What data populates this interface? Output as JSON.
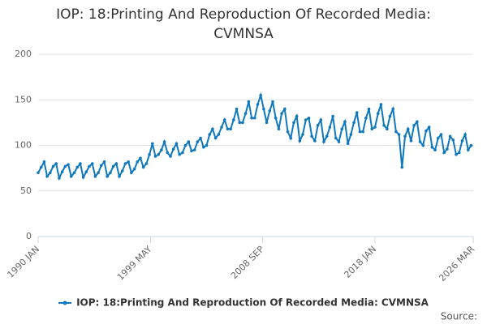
{
  "chart_data": {
    "type": "line",
    "title": "IOP: 18:Printing And Reproduction Of Recorded Media: CVMNSA",
    "source": "Source:",
    "x": [
      "1990-01",
      "1990-04",
      "1990-07",
      "1990-10",
      "1991-01",
      "1991-04",
      "1991-07",
      "1991-10",
      "1992-01",
      "1992-04",
      "1992-07",
      "1992-10",
      "1993-01",
      "1993-04",
      "1993-07",
      "1993-10",
      "1994-01",
      "1994-04",
      "1994-07",
      "1994-10",
      "1995-01",
      "1995-04",
      "1995-07",
      "1995-10",
      "1996-01",
      "1996-04",
      "1996-07",
      "1996-10",
      "1997-01",
      "1997-04",
      "1997-07",
      "1997-10",
      "1998-01",
      "1998-04",
      "1998-07",
      "1998-10",
      "1999-01",
      "1999-04",
      "1999-07",
      "1999-10",
      "2000-01",
      "2000-04",
      "2000-07",
      "2000-10",
      "2001-01",
      "2001-04",
      "2001-07",
      "2001-10",
      "2002-01",
      "2002-04",
      "2002-07",
      "2002-10",
      "2003-01",
      "2003-04",
      "2003-07",
      "2003-10",
      "2004-01",
      "2004-04",
      "2004-07",
      "2004-10",
      "2005-01",
      "2005-04",
      "2005-07",
      "2005-10",
      "2006-01",
      "2006-04",
      "2006-07",
      "2006-10",
      "2007-01",
      "2007-04",
      "2007-07",
      "2007-10",
      "2008-01",
      "2008-04",
      "2008-07",
      "2008-10",
      "2009-01",
      "2009-04",
      "2009-07",
      "2009-10",
      "2010-01",
      "2010-04",
      "2010-07",
      "2010-10",
      "2011-01",
      "2011-04",
      "2011-07",
      "2011-10",
      "2012-01",
      "2012-04",
      "2012-07",
      "2012-10",
      "2013-01",
      "2013-04",
      "2013-07",
      "2013-10",
      "2014-01",
      "2014-04",
      "2014-07",
      "2014-10",
      "2015-01",
      "2015-04",
      "2015-07",
      "2015-10",
      "2016-01",
      "2016-04",
      "2016-07",
      "2016-10",
      "2017-01",
      "2017-04",
      "2017-07",
      "2017-10",
      "2018-01",
      "2018-04",
      "2018-07",
      "2018-10",
      "2019-01",
      "2019-04",
      "2019-07",
      "2019-10",
      "2020-01",
      "2020-04",
      "2020-07",
      "2020-10",
      "2021-01",
      "2021-04",
      "2021-07",
      "2021-10",
      "2022-01",
      "2022-04",
      "2022-07",
      "2022-10",
      "2023-01",
      "2023-04",
      "2023-07",
      "2023-10",
      "2024-01",
      "2024-04",
      "2024-07",
      "2024-10",
      "2025-01",
      "2025-04",
      "2025-07",
      "2025-10",
      "2026-01"
    ],
    "series": [
      {
        "name": "IOP: 18:Printing And Reproduction Of Recorded Media: CVMNSA",
        "color": "#0f78be",
        "values": [
          70,
          76,
          82,
          66,
          70,
          77,
          80,
          64,
          71,
          77,
          79,
          66,
          70,
          76,
          80,
          65,
          71,
          77,
          80,
          66,
          70,
          78,
          82,
          66,
          70,
          77,
          80,
          66,
          72,
          80,
          82,
          70,
          74,
          82,
          86,
          76,
          80,
          90,
          102,
          88,
          90,
          95,
          104,
          92,
          88,
          96,
          102,
          90,
          92,
          100,
          104,
          94,
          95,
          104,
          108,
          98,
          100,
          112,
          118,
          108,
          112,
          120,
          128,
          118,
          118,
          128,
          140,
          125,
          125,
          135,
          148,
          130,
          130,
          145,
          155,
          140,
          125,
          138,
          148,
          130,
          118,
          135,
          140,
          115,
          108,
          125,
          132,
          105,
          112,
          128,
          130,
          110,
          105,
          122,
          128,
          104,
          110,
          120,
          132,
          108,
          104,
          118,
          126,
          102,
          112,
          125,
          136,
          115,
          115,
          130,
          140,
          118,
          120,
          135,
          145,
          122,
          118,
          132,
          140,
          115,
          112,
          76,
          110,
          118,
          105,
          122,
          126,
          104,
          100,
          116,
          120,
          98,
          95,
          108,
          112,
          92,
          96,
          110,
          106,
          90,
          92,
          105,
          112,
          95,
          100
        ]
      }
    ],
    "xlim": [
      "1990-01",
      "2026-03"
    ],
    "xticks": [
      {
        "value": "1990-01",
        "label": "1990 JAN"
      },
      {
        "value": "1999-05",
        "label": "1999 MAY"
      },
      {
        "value": "2008-09",
        "label": "2008 SEP"
      },
      {
        "value": "2018-01",
        "label": "2018 JAN"
      },
      {
        "value": "2026-03",
        "label": "2026 MAR"
      }
    ],
    "ylim": [
      0,
      200
    ],
    "yticks": [
      0,
      50,
      100,
      150,
      200
    ],
    "grid": true,
    "legend": "bottom"
  }
}
